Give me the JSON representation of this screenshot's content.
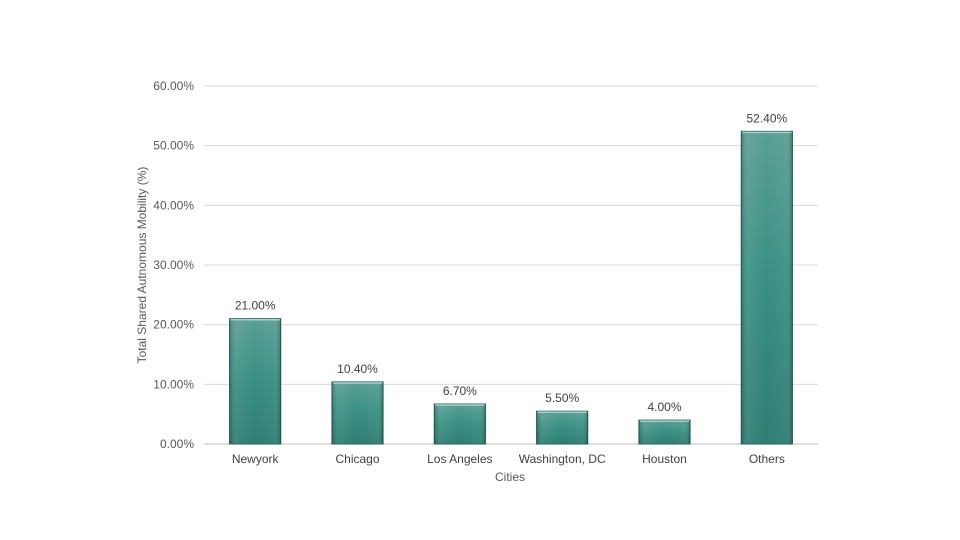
{
  "chart_data": {
    "type": "bar",
    "categories": [
      "Newyork",
      "Chicago",
      "Los Angeles",
      "Washington, DC",
      "Houston",
      "Others"
    ],
    "values": [
      21.0,
      10.4,
      6.7,
      5.5,
      4.0,
      52.4
    ],
    "data_labels": [
      "21.00%",
      "10.40%",
      "6.70%",
      "5.50%",
      "4.00%",
      "52.40%"
    ],
    "title": "",
    "xlabel": "Cities",
    "ylabel": "Total Shared Autnomous Mobility (%)",
    "ylim": [
      0,
      60
    ],
    "yticks": [
      0,
      10,
      20,
      30,
      40,
      50,
      60
    ],
    "ytick_labels": [
      "0.00%",
      "10.00%",
      "20.00%",
      "30.00%",
      "40.00%",
      "50.00%",
      "60.00%"
    ],
    "grid": true,
    "legend": "none",
    "bar_color_top": "#5a9e94",
    "bar_color_bottom": "#2e7d72",
    "bar_edge_color": "#1f5f57"
  }
}
